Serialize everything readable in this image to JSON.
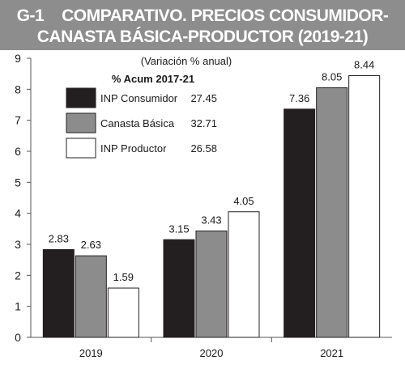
{
  "header": {
    "code": "G-1",
    "title_line1": "COMPARATIVO. PRECIOS CONSUMIDOR-",
    "title_line2": "CANASTA BÁSICA-PRODUCTOR (2019-21)"
  },
  "chart_data": {
    "type": "bar",
    "subtitle": "(Variación % anual)",
    "categories": [
      "2019",
      "2020",
      "2021"
    ],
    "series": [
      {
        "name": "INP Consumidor",
        "values": [
          2.83,
          3.15,
          7.36
        ],
        "color": "#231f20",
        "accum": "27.45"
      },
      {
        "name": "Canasta Básica",
        "values": [
          2.63,
          3.43,
          8.05
        ],
        "color": "#8c8c8c",
        "accum": "32.71"
      },
      {
        "name": "INP Productor",
        "values": [
          1.59,
          4.05,
          8.44
        ],
        "color": "#ffffff",
        "accum": "26.58"
      }
    ],
    "value_labels": [
      [
        "2.83",
        "3.15",
        "7.36"
      ],
      [
        "2.63",
        "3.43",
        "8.05"
      ],
      [
        "1.59",
        "4.05",
        "8.44"
      ]
    ],
    "ylim": [
      0,
      9
    ],
    "yticks": [
      "0",
      "1",
      "2",
      "3",
      "4",
      "5",
      "6",
      "7",
      "8",
      "9"
    ],
    "legend_title": "% Acum 2017-21",
    "legend_position": "top-left",
    "grid": false
  }
}
